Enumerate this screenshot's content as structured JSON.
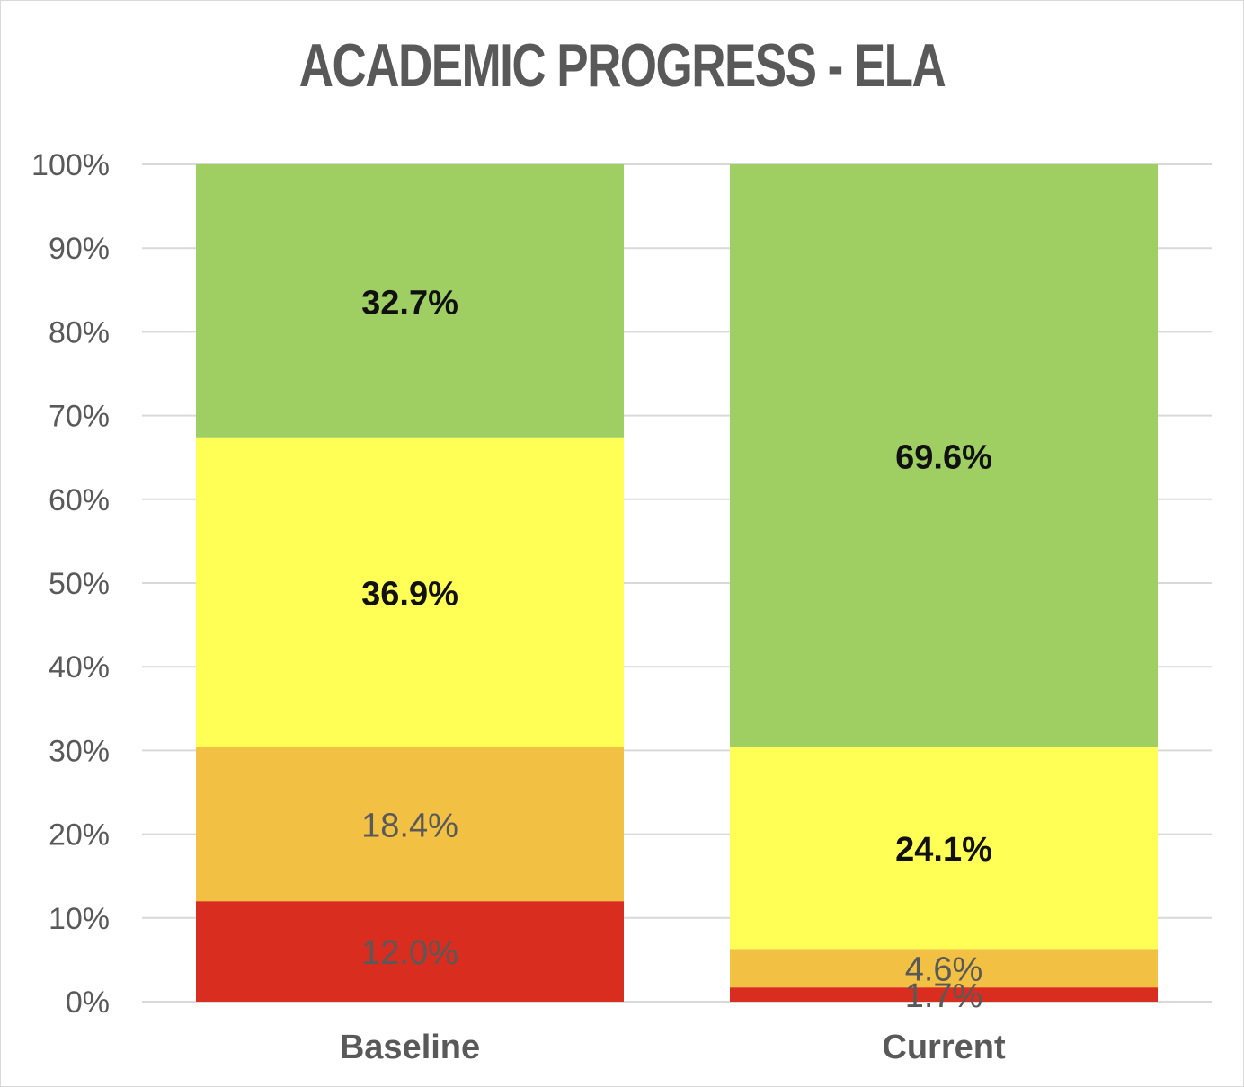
{
  "chart_data": {
    "type": "bar",
    "stacked": true,
    "title": "ACADEMIC PROGRESS - ELA",
    "xlabel": "",
    "ylabel": "",
    "categories": [
      "Baseline",
      "Current"
    ],
    "ylim": [
      0,
      100
    ],
    "yticks": [
      "0%",
      "10%",
      "20%",
      "30%",
      "40%",
      "50%",
      "60%",
      "70%",
      "80%",
      "90%",
      "100%"
    ],
    "grid": true,
    "series": [
      {
        "values": [
          12.0,
          1.7
        ],
        "labels": [
          "12.0%",
          "1.7%"
        ],
        "color": "#d92d20",
        "label_color": "#595959"
      },
      {
        "values": [
          18.4,
          4.6
        ],
        "labels": [
          "18.4%",
          "4.6%"
        ],
        "color": "#f2c043",
        "label_color": "#595959"
      },
      {
        "values": [
          36.9,
          24.1
        ],
        "labels": [
          "36.9%",
          "24.1%"
        ],
        "color": "#ffff55",
        "label_color": "#111111"
      },
      {
        "values": [
          32.7,
          69.6
        ],
        "labels": [
          "32.7%",
          "69.6%"
        ],
        "color": "#9fcf63",
        "label_color": "#111111"
      }
    ]
  }
}
